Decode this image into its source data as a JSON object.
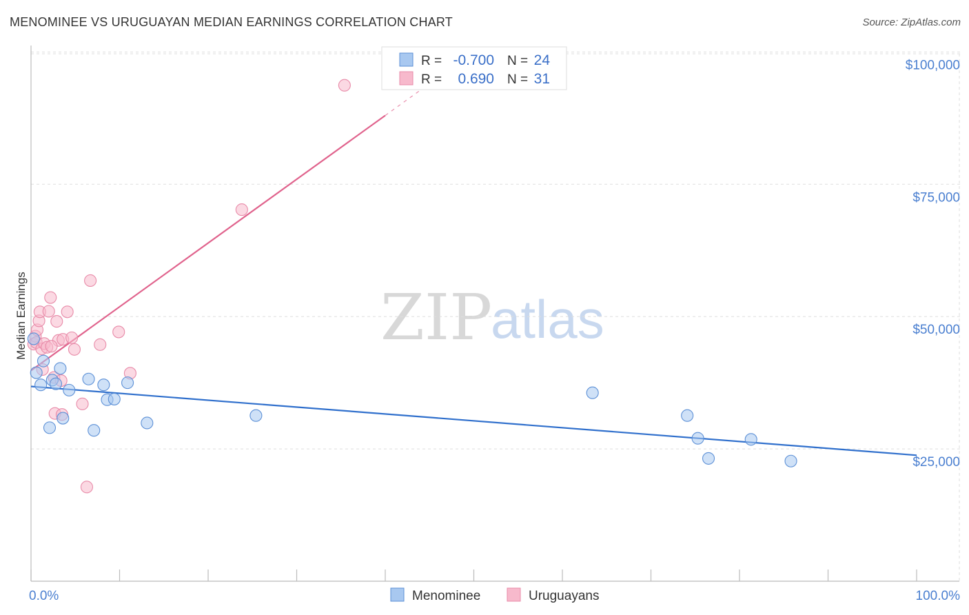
{
  "header": {
    "title": "MENOMINEE VS URUGUAYAN MEDIAN EARNINGS CORRELATION CHART",
    "source": "Source: ZipAtlas.com"
  },
  "watermark": {
    "zip": "ZIP",
    "atlas": "atlas"
  },
  "colors": {
    "menominee_fill": "#a8c8f0",
    "menominee_stroke": "#5b8fd6",
    "menominee_line": "#2f6fcc",
    "uruguayans_fill": "#f7b9cc",
    "uruguayans_stroke": "#e88aa8",
    "uruguayans_line": "#e0628c",
    "tick_text": "#4a7fd0",
    "grid": "#dddddd"
  },
  "legend_top": {
    "rows": [
      {
        "r_label": "R =",
        "r_value": "-0.700",
        "n_label": "N =",
        "n_value": "24"
      },
      {
        "r_label": "R =",
        "r_value": "0.690",
        "n_label": "N =",
        "n_value": "31"
      }
    ]
  },
  "legend_bottom": {
    "items": [
      "Menominee",
      "Uruguayans"
    ]
  },
  "chart_data": {
    "type": "scatter",
    "title": "MENOMINEE VS URUGUAYAN MEDIAN EARNINGS CORRELATION CHART",
    "xlabel": "",
    "ylabel": "Median Earnings",
    "xlim": [
      0,
      100
    ],
    "ylim": [
      0,
      102000
    ],
    "x_tick_labels": [
      "0.0%",
      "100.0%"
    ],
    "y_ticks": [
      25000,
      50000,
      75000,
      100000
    ],
    "y_tick_labels": [
      "$25,000",
      "$50,000",
      "$75,000",
      "$100,000"
    ],
    "grid": true,
    "series": [
      {
        "name": "Menominee",
        "r": -0.7,
        "n": 24,
        "trend": {
          "x": [
            0,
            100
          ],
          "y": [
            36800,
            23800
          ]
        },
        "points": [
          {
            "x": 0.3,
            "y": 45800
          },
          {
            "x": 0.6,
            "y": 39400
          },
          {
            "x": 1.1,
            "y": 37100
          },
          {
            "x": 1.4,
            "y": 41600
          },
          {
            "x": 2.1,
            "y": 29000
          },
          {
            "x": 2.4,
            "y": 38000
          },
          {
            "x": 2.8,
            "y": 37300
          },
          {
            "x": 3.3,
            "y": 40200
          },
          {
            "x": 3.6,
            "y": 30800
          },
          {
            "x": 4.3,
            "y": 36100
          },
          {
            "x": 6.5,
            "y": 38200
          },
          {
            "x": 7.1,
            "y": 28500
          },
          {
            "x": 8.2,
            "y": 37100
          },
          {
            "x": 8.6,
            "y": 34300
          },
          {
            "x": 9.4,
            "y": 34400
          },
          {
            "x": 10.9,
            "y": 37500
          },
          {
            "x": 13.1,
            "y": 29900
          },
          {
            "x": 25.4,
            "y": 31300
          },
          {
            "x": 63.4,
            "y": 35600
          },
          {
            "x": 74.1,
            "y": 31300
          },
          {
            "x": 75.3,
            "y": 27000
          },
          {
            "x": 76.5,
            "y": 23200
          },
          {
            "x": 81.3,
            "y": 26800
          },
          {
            "x": 85.8,
            "y": 22700
          }
        ]
      },
      {
        "name": "Uruguayans",
        "r": 0.69,
        "n": 31,
        "trend": {
          "x": [
            0,
            40
          ],
          "y": [
            39800,
            88000
          ]
        },
        "points": [
          {
            "x": 0.3,
            "y": 44800
          },
          {
            "x": 0.5,
            "y": 46300
          },
          {
            "x": 0.6,
            "y": 45100
          },
          {
            "x": 0.7,
            "y": 47500
          },
          {
            "x": 0.9,
            "y": 49200
          },
          {
            "x": 1.0,
            "y": 50900
          },
          {
            "x": 1.2,
            "y": 43900
          },
          {
            "x": 1.3,
            "y": 40000
          },
          {
            "x": 1.5,
            "y": 44900
          },
          {
            "x": 1.8,
            "y": 44200
          },
          {
            "x": 2.0,
            "y": 51000
          },
          {
            "x": 2.2,
            "y": 53600
          },
          {
            "x": 2.6,
            "y": 38500
          },
          {
            "x": 2.7,
            "y": 31700
          },
          {
            "x": 2.9,
            "y": 49100
          },
          {
            "x": 3.1,
            "y": 45500
          },
          {
            "x": 3.4,
            "y": 37900
          },
          {
            "x": 3.5,
            "y": 31500
          },
          {
            "x": 3.6,
            "y": 45700
          },
          {
            "x": 4.1,
            "y": 50900
          },
          {
            "x": 4.6,
            "y": 46000
          },
          {
            "x": 4.9,
            "y": 43800
          },
          {
            "x": 5.8,
            "y": 33500
          },
          {
            "x": 6.3,
            "y": 17800
          },
          {
            "x": 6.7,
            "y": 56800
          },
          {
            "x": 7.8,
            "y": 44700
          },
          {
            "x": 9.9,
            "y": 47100
          },
          {
            "x": 11.2,
            "y": 39300
          },
          {
            "x": 23.8,
            "y": 70200
          },
          {
            "x": 35.4,
            "y": 93700
          },
          {
            "x": 2.3,
            "y": 44400
          }
        ]
      }
    ]
  }
}
